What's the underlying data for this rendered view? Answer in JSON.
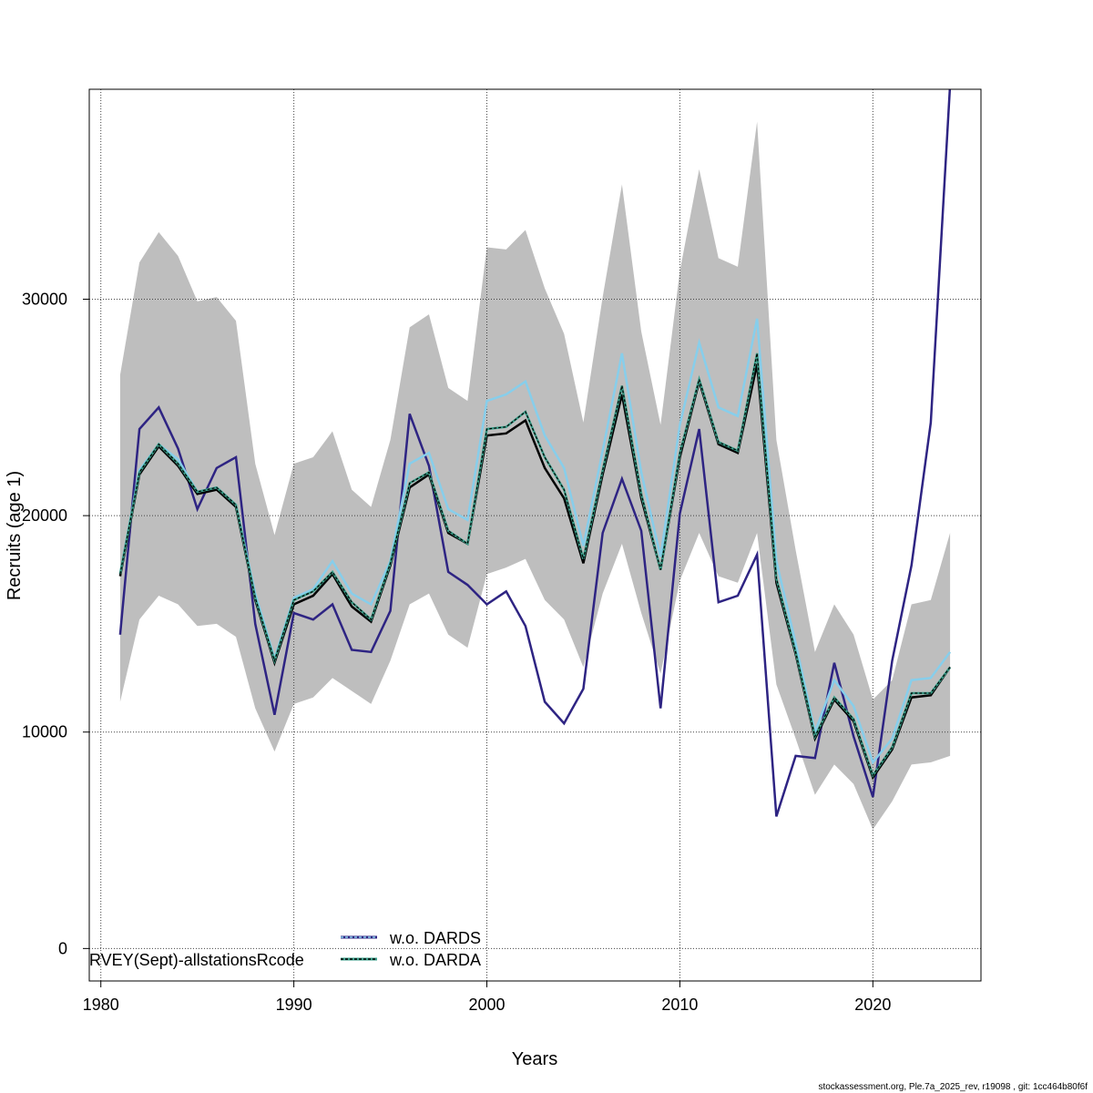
{
  "colors": {
    "band": "#bebebe",
    "line_navy": "#2e2483",
    "line_lightblue": "#87ceeb",
    "line_teal": "#3a9f8a",
    "line_black": "#000000",
    "grid": "#444444"
  },
  "footer": "stockassessment.org, Ple.7a_2025_rev, r19098 , git: 1cc464b80f6f",
  "chart_data": {
    "type": "line",
    "title": "",
    "xlabel": "Years",
    "ylabel": "Recruits (age 1)",
    "xlim": [
      1979.4,
      2025.6
    ],
    "ylim": [
      -1500,
      39700
    ],
    "xticks": [
      1980,
      1990,
      2000,
      2010,
      2020
    ],
    "yticks": [
      0,
      10000,
      20000,
      30000
    ],
    "grid": true,
    "legend_position": "bottom-left",
    "x": [
      1981,
      1982,
      1983,
      1984,
      1985,
      1986,
      1987,
      1988,
      1989,
      1990,
      1991,
      1992,
      1993,
      1994,
      1995,
      1996,
      1997,
      1998,
      1999,
      2000,
      2001,
      2002,
      2003,
      2004,
      2005,
      2006,
      2007,
      2008,
      2009,
      2010,
      2011,
      2012,
      2013,
      2014,
      2015,
      2016,
      2017,
      2018,
      2019,
      2020,
      2021,
      2022,
      2023,
      2024
    ],
    "band": {
      "upper": [
        26500,
        31700,
        33100,
        32000,
        29900,
        30100,
        29000,
        22400,
        19100,
        22400,
        22700,
        23900,
        21200,
        20400,
        23500,
        28700,
        29300,
        25900,
        25300,
        32400,
        32300,
        33200,
        30500,
        28400,
        24300,
        30100,
        35300,
        28500,
        24200,
        31300,
        36000,
        31900,
        31500,
        38200,
        23500,
        18400,
        13700,
        15900,
        14500,
        11500,
        12400,
        15900,
        16100,
        19200
      ],
      "lower": [
        11400,
        15200,
        16300,
        15900,
        14900,
        15000,
        14400,
        11100,
        9100,
        11300,
        11600,
        12500,
        11900,
        11300,
        13300,
        15900,
        16400,
        14500,
        13900,
        17300,
        17600,
        18000,
        16100,
        15200,
        13000,
        16400,
        18700,
        15500,
        12700,
        17000,
        19200,
        17200,
        16900,
        19200,
        12200,
        9700,
        7100,
        8500,
        7600,
        5500,
        6800,
        8500,
        8600,
        8900
      ]
    },
    "series": [
      {
        "name": "",
        "color": "#2e2483",
        "dash": "",
        "values": [
          14500,
          24000,
          25000,
          23100,
          20300,
          22200,
          22700,
          15000,
          10800,
          15500,
          15200,
          15900,
          13800,
          13700,
          15600,
          24700,
          22300,
          17400,
          16800,
          15900,
          16500,
          14900,
          11400,
          10400,
          12000,
          19200,
          21700,
          19300,
          11100,
          20100,
          24000,
          16000,
          16300,
          18200,
          6100,
          8900,
          8800,
          13200,
          9800,
          7000,
          13300,
          17700,
          24300,
          39900
        ]
      },
      {
        "name": "",
        "color": "#87ceeb",
        "dash": "",
        "values": [
          17300,
          22100,
          23300,
          22600,
          21100,
          21300,
          20500,
          16400,
          13400,
          16200,
          16600,
          17900,
          16400,
          15900,
          17900,
          22400,
          22900,
          20300,
          19800,
          25300,
          25600,
          26200,
          23700,
          22200,
          18600,
          23000,
          27500,
          22000,
          18100,
          24200,
          28000,
          25000,
          24600,
          29100,
          17900,
          14100,
          10000,
          12400,
          11200,
          8600,
          9700,
          12400,
          12500,
          13700
        ]
      },
      {
        "name": "w.o. DARDS",
        "color": "#2e2483",
        "dash": "4 3",
        "values": [
          17200,
          21900,
          23200,
          22300,
          21000,
          21200,
          20400,
          16100,
          13200,
          15900,
          16300,
          17300,
          15800,
          15100,
          17700,
          21300,
          21900,
          19200,
          18700,
          23700,
          23800,
          24400,
          22200,
          20800,
          17800,
          21900,
          25600,
          20800,
          17500,
          22700,
          26200,
          23300,
          22900,
          27000,
          16900,
          13600,
          9700,
          11500,
          10500,
          7900,
          9200,
          11600,
          11700,
          13000
        ]
      },
      {
        "name": "w.o. DARDA",
        "color": "#3a9f8a",
        "dash": "",
        "values": [
          17300,
          22000,
          23300,
          22400,
          21100,
          21300,
          20500,
          16200,
          13300,
          16100,
          16500,
          17400,
          16000,
          15200,
          17800,
          21500,
          22000,
          19300,
          18700,
          24000,
          24100,
          24800,
          22700,
          21200,
          18000,
          22100,
          26000,
          21000,
          17500,
          22900,
          26300,
          23400,
          23000,
          27500,
          17100,
          13700,
          9800,
          11600,
          10600,
          8000,
          9300,
          11800,
          11800,
          13000
        ]
      }
    ],
    "annotation": "RVEY(Sept)-allstationsRcode"
  }
}
